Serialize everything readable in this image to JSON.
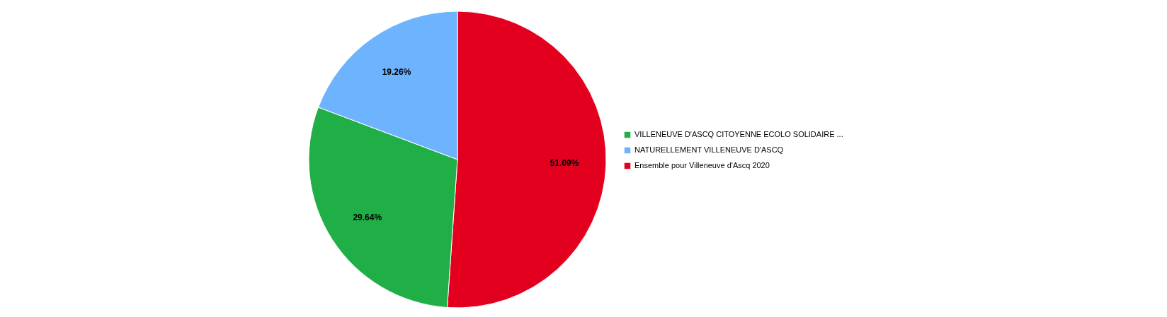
{
  "chart_data": {
    "type": "pie",
    "categories": [
      "Ensemble pour Villeneuve d'Ascq 2020",
      "VILLENEUVE D'ASCQ CITOYENNE ECOLO SOLIDAIRE ...",
      "NATURELLEMENT VILLENEUVE D'ASCQ"
    ],
    "values": [
      51.09,
      29.64,
      19.26
    ],
    "colors": [
      "#e3001f",
      "#20ae46",
      "#6eb3fe"
    ],
    "value_labels": [
      "51.09%",
      "29.64%",
      "19.26%"
    ],
    "legend": "right"
  }
}
